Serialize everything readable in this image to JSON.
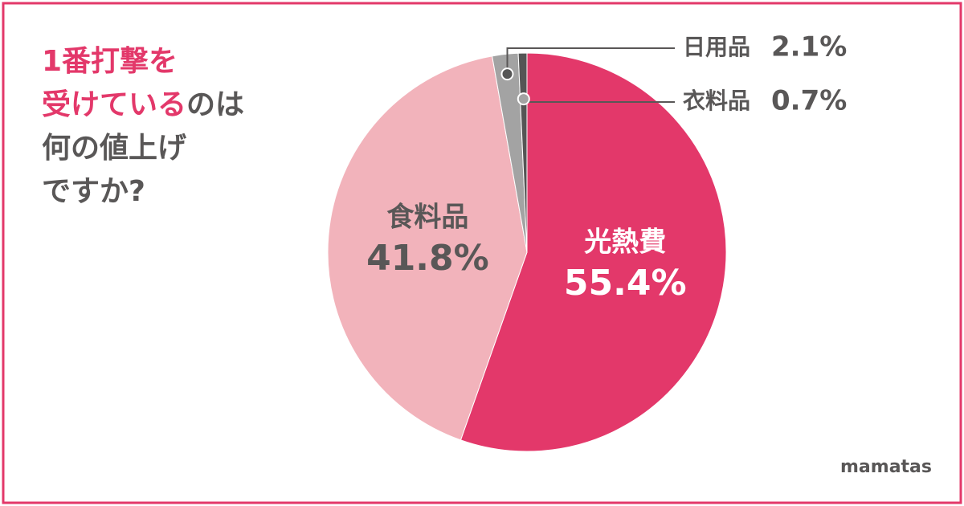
{
  "chart_data": {
    "type": "pie",
    "title": [
      [
        {
          "text": "1番打撃を",
          "color": "#e3386a"
        }
      ],
      [
        {
          "text": "受けている",
          "color": "#e3386a"
        },
        {
          "text": "のは",
          "color": "#595757"
        }
      ],
      [
        {
          "text": "何の値上げ",
          "color": "#595757"
        }
      ],
      [
        {
          "text": "ですか?",
          "color": "#595757"
        }
      ]
    ],
    "categories": [
      "光熱費",
      "食料品",
      "日用品",
      "衣料品"
    ],
    "values": [
      55.4,
      41.8,
      2.1,
      0.7
    ],
    "value_labels": [
      "55.4%",
      "41.8%",
      "2.1%",
      "0.7%"
    ],
    "colors": [
      "#e3386a",
      "#f2b3bb",
      "#a3a3a3",
      "#555555"
    ],
    "label_colors": [
      "#ffffff",
      "#595757",
      "#595757",
      "#595757"
    ],
    "brand": "mamatas"
  }
}
